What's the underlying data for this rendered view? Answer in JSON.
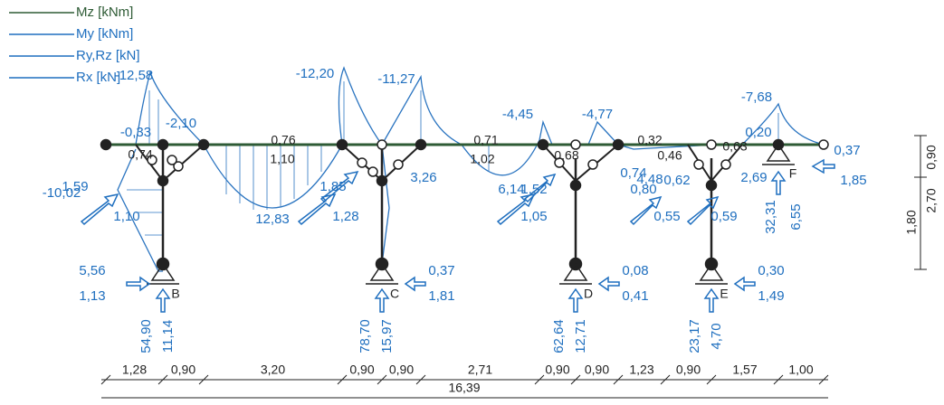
{
  "legend": [
    "Mz [kNm]",
    "My [kNm]",
    "Ry,Rz [kN]",
    "Rx [kN]"
  ],
  "moment_labels": [
    "-12,58",
    "-12,20",
    "-11,27",
    "-4,45",
    "-4,77",
    "-7,68",
    "-2,10",
    "-0,33",
    "0,20",
    "12,83",
    "3,26",
    "6,14",
    "1,52",
    "0,74",
    "4,48",
    "0,80",
    "0,62"
  ],
  "beam_labels": [
    "0,74",
    "0,76",
    "1,10",
    "0,71",
    "1,02",
    "0,32",
    "0,68",
    "0,46",
    "0,63"
  ],
  "reaction_labels": [
    "1,59",
    "-10,02",
    "1,10",
    "1,85",
    "1,28",
    "1,05",
    "0,55",
    "0,59",
    "2,69",
    "0,37",
    "1,85",
    "32,31",
    "6,55"
  ],
  "supports": [
    {
      "name": "B",
      "labels": [
        "5,56",
        "1,13",
        "54,90",
        "11,14"
      ]
    },
    {
      "name": "C",
      "labels": [
        "0,37",
        "1,81",
        "78,70",
        "15,97"
      ]
    },
    {
      "name": "D",
      "labels": [
        "0,08",
        "0,41",
        "62,64",
        "12,71"
      ]
    },
    {
      "name": "E",
      "labels": [
        "0,30",
        "1,49",
        "23,17",
        "4,70"
      ]
    }
  ],
  "end_support": "F",
  "dimensions": [
    "1,28",
    "0,90",
    "3,20",
    "0,90",
    "0,90",
    "2,71",
    "0,90",
    "0,90",
    "1,23",
    "0,90",
    "1,57",
    "1,00"
  ],
  "total_dimension": "16,39",
  "side_dimensions": [
    "0,90",
    "2,70",
    "1,80"
  ]
}
